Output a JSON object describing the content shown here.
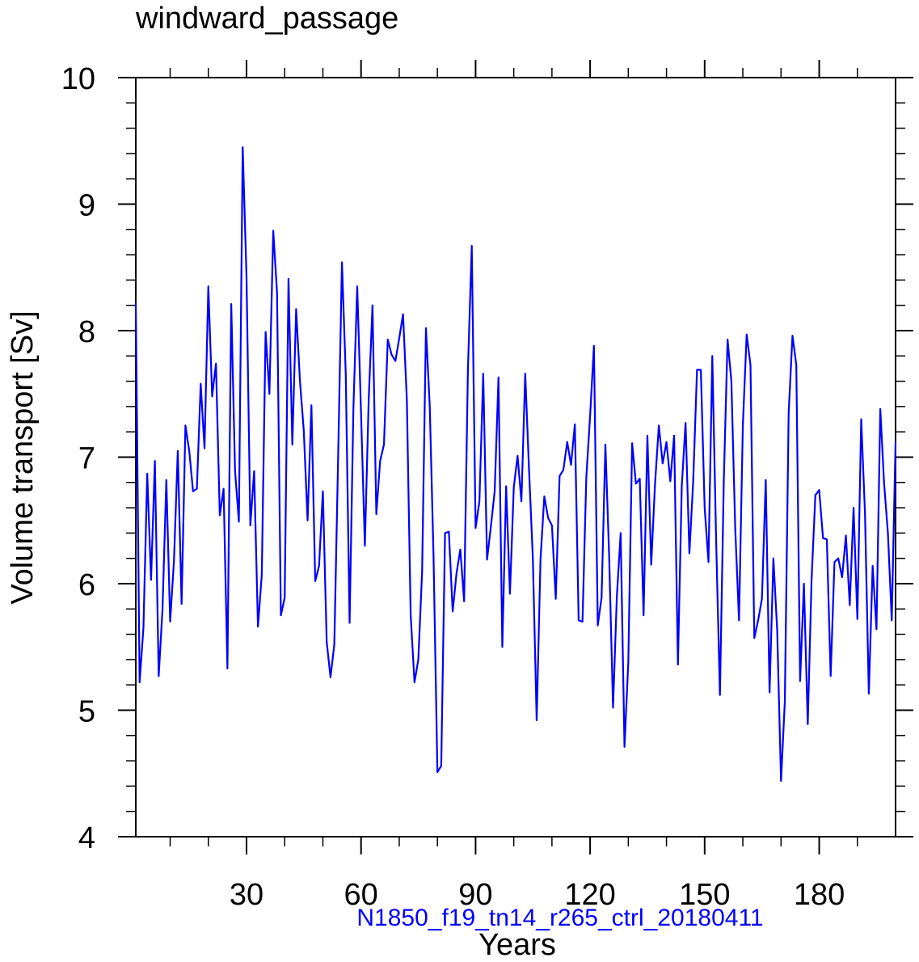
{
  "chart_data": {
    "type": "line",
    "title": "windward_passage",
    "xlabel": "Years",
    "ylabel": "Volume transport [Sv]",
    "caption": "N1850_f19_tn14_r265_ctrl_20180411",
    "xlim": [
      1,
      200
    ],
    "ylim": [
      4,
      10
    ],
    "xticks": [
      30,
      60,
      90,
      120,
      150,
      180
    ],
    "yticks": [
      4,
      5,
      6,
      7,
      8,
      9,
      10
    ],
    "xtick_labels": [
      "30",
      "60",
      "90",
      "120",
      "150",
      "180"
    ],
    "ytick_labels": [
      "4",
      "5",
      "6",
      "7",
      "8",
      "9",
      "10"
    ],
    "line_color": "#0000ff",
    "caption_color": "#0000ff",
    "series": [
      {
        "name": "windward_passage",
        "values": [
          8.22,
          5.22,
          5.65,
          6.87,
          6.03,
          6.97,
          5.27,
          5.8,
          6.82,
          5.7,
          6.18,
          7.05,
          5.84,
          7.25,
          7.05,
          6.73,
          6.75,
          7.58,
          7.07,
          8.35,
          7.48,
          7.74,
          6.54,
          6.75,
          5.33,
          8.21,
          6.89,
          6.49,
          9.45,
          8.43,
          6.46,
          6.89,
          5.66,
          6.07,
          7.99,
          7.5,
          8.79,
          8.3,
          5.75,
          5.89,
          8.41,
          7.1,
          8.17,
          7.6,
          7.21,
          6.5,
          7.41,
          6.02,
          6.14,
          6.73,
          5.54,
          5.26,
          5.52,
          7.0,
          8.54,
          7.65,
          5.69,
          7.39,
          8.35,
          7.35,
          6.3,
          7.45,
          8.2,
          6.55,
          6.97,
          7.1,
          7.93,
          7.81,
          7.76,
          7.94,
          8.13,
          7.45,
          5.75,
          5.22,
          5.4,
          6.1,
          8.02,
          7.4,
          6.2,
          4.51,
          4.56,
          6.4,
          6.41,
          5.78,
          6.08,
          6.27,
          5.86,
          7.7,
          8.67,
          6.44,
          6.65,
          7.66,
          6.19,
          6.45,
          6.73,
          7.63,
          5.5,
          6.77,
          5.92,
          6.76,
          7.01,
          6.65,
          7.66,
          6.9,
          6.2,
          4.92,
          6.19,
          6.69,
          6.52,
          6.46,
          5.88,
          6.85,
          6.9,
          7.12,
          6.94,
          7.26,
          5.71,
          5.7,
          6.84,
          7.33,
          7.88,
          5.67,
          5.89,
          7.1,
          6.2,
          5.02,
          5.9,
          6.4,
          4.71,
          5.38,
          7.11,
          6.79,
          6.83,
          5.75,
          7.17,
          6.15,
          6.79,
          7.25,
          6.95,
          7.12,
          6.81,
          7.17,
          5.36,
          6.77,
          7.27,
          6.24,
          6.81,
          7.69,
          7.69,
          6.6,
          6.17,
          7.8,
          6.35,
          5.12,
          6.8,
          7.93,
          7.6,
          6.44,
          5.71,
          7.25,
          7.97,
          7.73,
          5.57,
          5.71,
          5.88,
          6.82,
          5.14,
          6.2,
          5.63,
          4.44,
          5.07,
          7.35,
          7.96,
          7.73,
          5.23,
          6.0,
          4.89,
          6.03,
          6.7,
          6.74,
          6.36,
          6.35,
          5.27,
          6.17,
          6.2,
          6.05,
          6.38,
          5.83,
          6.6,
          5.72,
          7.3,
          6.55,
          5.13,
          6.14,
          5.64,
          7.38,
          6.79,
          6.4,
          5.71,
          7.12
        ]
      }
    ]
  }
}
